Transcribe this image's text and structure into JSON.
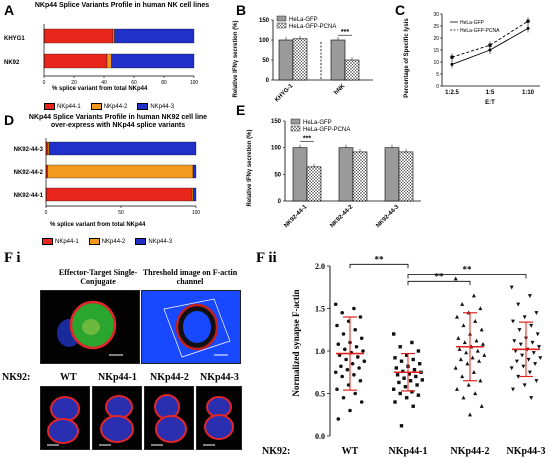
{
  "panels": {
    "A": {
      "label": "A",
      "title": "NKp44 Splice  Variants Profile in  human NK cell lines",
      "xlabel": "% splice variant from total NKp44",
      "ticks": [
        "0",
        "20",
        "40",
        "60",
        "80",
        "100"
      ],
      "legend": [
        "NKp44-1",
        "NKp44-2",
        "NKp44-3"
      ]
    },
    "B": {
      "label": "B",
      "ylabel": "Relative IFNγ secretion (%)",
      "legend": [
        "HeLa-GFP",
        "HeLa-GFP-PCNA"
      ],
      "ticks": [
        "0",
        "50",
        "100",
        "150"
      ],
      "signif": "***"
    },
    "C": {
      "label": "C",
      "ylabel": "Percentage of Specific lysis",
      "xlabel": "E:T",
      "legend": [
        "HeLa-GFP",
        "HeLa-GFP-PCNA"
      ],
      "ticks": [
        "0",
        "5",
        "10",
        "15",
        "20",
        "25",
        "30"
      ]
    },
    "D": {
      "label": "D",
      "title": "NKp44 Splice Variants Profile in  human NK92 cell line over-express with NKp44 splice variants",
      "xlabel": "% splice variant from total NKp44",
      "ticks": [
        "0",
        "50",
        "100"
      ],
      "legend": [
        "NKp44-1",
        "NKp44-2",
        "NKp44-3"
      ]
    },
    "E": {
      "label": "E",
      "ylabel": "Relative IFNγ secretion (%)",
      "legend": [
        "HeLa-GFP",
        "HeLa-GFP-PCNA"
      ],
      "ticks": [
        "0",
        "50",
        "100",
        "150"
      ],
      "signif": "***"
    },
    "Fi": {
      "label": "F i",
      "image_label_left": "Effector-Target Single-Conjugate",
      "image_label_right": "Threshold image on F-actin channel",
      "row_prefix": "NK92:",
      "cell_labels": [
        "WT",
        "NKp44-1",
        "NKp44-2",
        "NKp44-3"
      ]
    },
    "Fii": {
      "label": "F ii",
      "ylabel": "Normalized synapse F-actin",
      "row_prefix": "NK92:",
      "ticks": [
        "0.0",
        "0.5",
        "1.0",
        "1.5",
        "2.0"
      ],
      "signif": [
        "**",
        "**",
        "**"
      ]
    }
  },
  "colors": {
    "nkp44_1": "#e8261c",
    "nkp44_2": "#f39a1e",
    "nkp44_3": "#2030c8",
    "bar_gray": "#9a9a9a",
    "significance_red": "#e0201a",
    "threshold_blue": "#1848ff"
  },
  "chart_data": [
    {
      "panel": "A",
      "type": "bar",
      "orientation": "horizontal",
      "stacked": true,
      "categories": [
        "KHYG1",
        "NK92"
      ],
      "series": [
        {
          "name": "NKp44-1",
          "values": [
            46,
            42
          ]
        },
        {
          "name": "NKp44-2",
          "values": [
            1,
            3
          ]
        },
        {
          "name": "NKp44-3",
          "values": [
            53,
            55
          ]
        }
      ],
      "title": "NKp44 Splice  Variants Profile in  human NK cell lines",
      "xlabel": "% splice variant from total NKp44",
      "xlim": [
        0,
        100
      ]
    },
    {
      "panel": "B",
      "type": "bar",
      "categories": [
        "KHYG-1",
        "hNK"
      ],
      "series": [
        {
          "name": "HeLa-GFP",
          "values": [
            100,
            100
          ]
        },
        {
          "name": "HeLa-GFP-PCNA",
          "values": [
            103,
            50
          ]
        }
      ],
      "ylabel": "Relative IFNγ secretion (%)",
      "ylim": [
        0,
        150
      ]
    },
    {
      "panel": "C",
      "type": "line",
      "categories": [
        "1:2.5",
        "1:5",
        "1:10"
      ],
      "series": [
        {
          "name": "HeLa-GFP",
          "values": [
            9,
            15,
            24
          ]
        },
        {
          "name": "HeLa-GFP-PCNA",
          "values": [
            12,
            17,
            27
          ]
        }
      ],
      "xlabel": "E:T",
      "ylabel": "Percentage of Specific lysis",
      "ylim": [
        0,
        30
      ]
    },
    {
      "panel": "D",
      "type": "bar",
      "orientation": "horizontal",
      "stacked": true,
      "categories": [
        "NK92-44-3",
        "NK92-44-2",
        "NK92-44-1"
      ],
      "series": [
        {
          "name": "NKp44-1",
          "values": [
            1,
            1,
            97
          ]
        },
        {
          "name": "NKp44-2",
          "values": [
            1,
            97,
            1
          ]
        },
        {
          "name": "NKp44-3",
          "values": [
            98,
            2,
            2
          ]
        }
      ],
      "title": "NKp44 Splice Variants Profile in  human NK92 cell line over-express with NKp44 splice variants",
      "xlabel": "% splice variant from total NKp44",
      "xlim": [
        0,
        100
      ]
    },
    {
      "panel": "E",
      "type": "bar",
      "categories": [
        "NK92-44-1",
        "NK92-44-2",
        "NK92-44-3"
      ],
      "series": [
        {
          "name": "HeLa-GFP",
          "values": [
            100,
            100,
            100
          ]
        },
        {
          "name": "HeLa-GFP-PCNA",
          "values": [
            64,
            92,
            92
          ]
        }
      ],
      "ylabel": "Relative IFNγ secretion (%)",
      "ylim": [
        0,
        150
      ]
    },
    {
      "panel": "Fii",
      "type": "scatter",
      "categories": [
        "WT",
        "NKp44-1",
        "NKp44-2",
        "NKp44-3"
      ],
      "series": [
        {
          "marker": "circle",
          "mean": 0.97,
          "sd": 0.43,
          "values": [
            1.55,
            1.5,
            1.45,
            1.4,
            1.35,
            1.3,
            1.25,
            1.2,
            1.15,
            1.1,
            1.08,
            1.05,
            1.02,
            1.0,
            0.98,
            0.95,
            0.93,
            0.9,
            0.88,
            0.85,
            0.82,
            0.8,
            0.78,
            0.75,
            0.72,
            0.7,
            0.65,
            0.6,
            0.55,
            0.5,
            0.45,
            0.4,
            0.3,
            0.2
          ]
        },
        {
          "marker": "square",
          "mean": 0.75,
          "sd": 0.22,
          "values": [
            1.2,
            1.1,
            1.05,
            1.0,
            0.95,
            0.92,
            0.9,
            0.88,
            0.85,
            0.82,
            0.8,
            0.78,
            0.76,
            0.75,
            0.73,
            0.72,
            0.7,
            0.68,
            0.66,
            0.65,
            0.63,
            0.6,
            0.58,
            0.55,
            0.52,
            0.5,
            0.48,
            0.45,
            0.4,
            0.35,
            0.12
          ]
        },
        {
          "marker": "triangle-up",
          "mean": 1.05,
          "sd": 0.4,
          "values": [
            1.85,
            1.65,
            1.55,
            1.5,
            1.45,
            1.4,
            1.35,
            1.3,
            1.25,
            1.2,
            1.15,
            1.12,
            1.1,
            1.08,
            1.05,
            1.02,
            1.0,
            0.98,
            0.95,
            0.92,
            0.9,
            0.88,
            0.85,
            0.8,
            0.75,
            0.7,
            0.65,
            0.6,
            0.55,
            0.5,
            0.45,
            0.35,
            0.25
          ]
        },
        {
          "marker": "triangle-down",
          "mean": 1.02,
          "sd": 0.32,
          "values": [
            1.75,
            1.65,
            1.55,
            1.45,
            1.4,
            1.35,
            1.3,
            1.25,
            1.2,
            1.15,
            1.12,
            1.1,
            1.08,
            1.05,
            1.02,
            1.0,
            0.98,
            0.95,
            0.92,
            0.9,
            0.88,
            0.85,
            0.82,
            0.8,
            0.75,
            0.7,
            0.65,
            0.6,
            0.55,
            0.45
          ]
        }
      ],
      "ylabel": "Normalized synapse F-actin",
      "ylim": [
        0,
        2.0
      ]
    }
  ]
}
